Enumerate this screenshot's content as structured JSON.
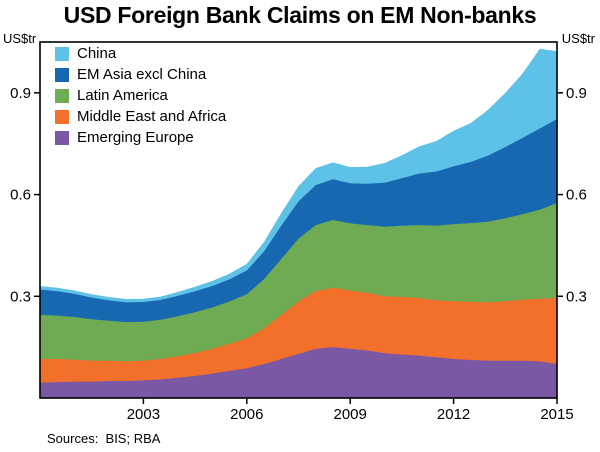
{
  "chart_data": {
    "type": "area",
    "stacked": true,
    "title": "USD Foreign Bank Claims on EM Non-banks",
    "y_unit": "US$tr",
    "xlabel": "",
    "ylabel": "US$tr",
    "xlim": [
      2000,
      2015
    ],
    "ylim": [
      0,
      1.05
    ],
    "yticks": [
      0.3,
      0.6,
      0.9
    ],
    "xticks": [
      2003,
      2006,
      2009,
      2012,
      2015
    ],
    "grid": false,
    "legend_position": "top-left",
    "axis_color": "#000000",
    "x": [
      2000,
      2000.5,
      2001,
      2001.5,
      2002,
      2002.5,
      2003,
      2003.5,
      2004,
      2004.5,
      2005,
      2005.5,
      2006,
      2006.5,
      2007,
      2007.5,
      2008,
      2008.5,
      2009,
      2009.5,
      2010,
      2010.5,
      2011,
      2011.5,
      2012,
      2012.5,
      2013,
      2013.5,
      2014,
      2014.5,
      2015
    ],
    "series": [
      {
        "name": "China",
        "color": "#5EC1E8",
        "values": [
          0.01,
          0.01,
          0.01,
          0.01,
          0.01,
          0.01,
          0.01,
          0.01,
          0.012,
          0.013,
          0.015,
          0.017,
          0.02,
          0.028,
          0.038,
          0.045,
          0.05,
          0.05,
          0.048,
          0.05,
          0.058,
          0.068,
          0.08,
          0.09,
          0.105,
          0.115,
          0.135,
          0.16,
          0.19,
          0.235,
          0.2
        ]
      },
      {
        "name": "EM Asia excl China",
        "color": "#1768B1",
        "values": [
          0.075,
          0.072,
          0.068,
          0.064,
          0.06,
          0.058,
          0.058,
          0.058,
          0.06,
          0.062,
          0.063,
          0.065,
          0.07,
          0.082,
          0.098,
          0.11,
          0.118,
          0.12,
          0.118,
          0.122,
          0.13,
          0.14,
          0.152,
          0.16,
          0.17,
          0.18,
          0.195,
          0.21,
          0.225,
          0.24,
          0.248
        ]
      },
      {
        "name": "Latin America",
        "color": "#6EAB53",
        "values": [
          0.13,
          0.128,
          0.126,
          0.122,
          0.118,
          0.116,
          0.115,
          0.116,
          0.118,
          0.12,
          0.122,
          0.125,
          0.13,
          0.145,
          0.165,
          0.185,
          0.195,
          0.2,
          0.198,
          0.2,
          0.205,
          0.21,
          0.215,
          0.22,
          0.228,
          0.232,
          0.238,
          0.245,
          0.252,
          0.262,
          0.28
        ]
      },
      {
        "name": "Middle East and Africa",
        "color": "#F3702B",
        "values": [
          0.07,
          0.068,
          0.065,
          0.062,
          0.06,
          0.058,
          0.058,
          0.06,
          0.063,
          0.068,
          0.073,
          0.08,
          0.088,
          0.105,
          0.13,
          0.155,
          0.17,
          0.175,
          0.172,
          0.17,
          0.168,
          0.17,
          0.17,
          0.168,
          0.17,
          0.172,
          0.172,
          0.175,
          0.18,
          0.185,
          0.195
        ]
      },
      {
        "name": "Emerging Europe",
        "color": "#7B58A4",
        "values": [
          0.045,
          0.047,
          0.048,
          0.048,
          0.05,
          0.05,
          0.052,
          0.055,
          0.06,
          0.065,
          0.072,
          0.08,
          0.088,
          0.1,
          0.115,
          0.13,
          0.145,
          0.15,
          0.145,
          0.14,
          0.132,
          0.128,
          0.125,
          0.12,
          0.115,
          0.112,
          0.11,
          0.11,
          0.11,
          0.108,
          0.1
        ]
      }
    ]
  },
  "footer": {
    "sources": "Sources:  BIS; RBA"
  }
}
